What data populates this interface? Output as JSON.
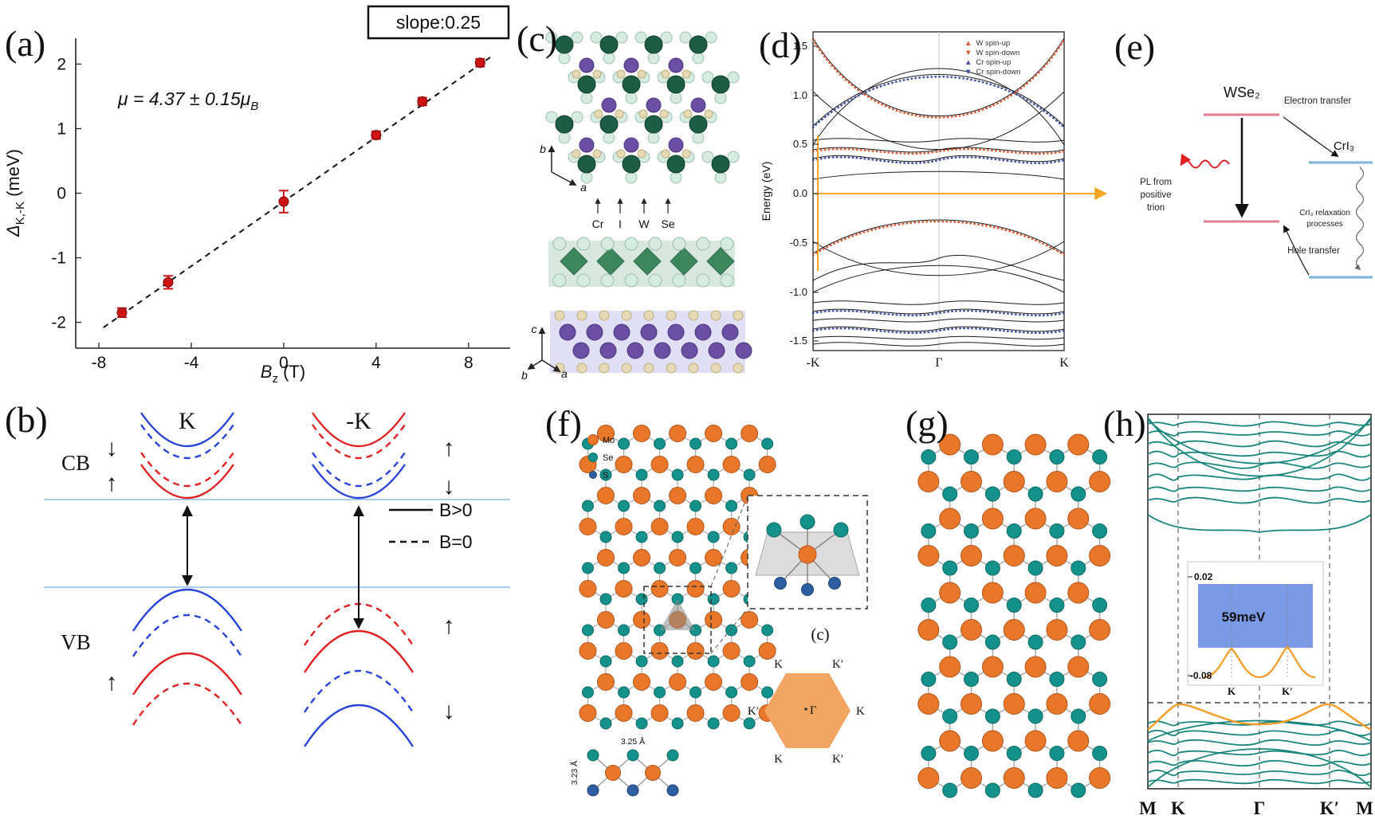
{
  "colors": {
    "marker_red": "#cc1414",
    "fit_black": "#111111",
    "red_band": "#e02020",
    "blue_band": "#2743d9",
    "light_blue_guide": "#a8cdea",
    "w_orange": "#d9542b",
    "cr_blue": "#3a4fa0",
    "band_black": "#1a1a1a",
    "fermi_orange": "#f5a623",
    "pink_level": "#e0808f",
    "blue_level": "#7ab3d9",
    "cr_green": "#1d5c45",
    "i_mint": "#d7ece1",
    "w_purple": "#6a4fa3",
    "se_beige": "#e6d9b5",
    "mo_orange": "#e8772a",
    "se_teal": "#13918a",
    "s_blue": "#2e5fa3",
    "defect_yellow": "#e8e13a",
    "band_teal": "#0e8077",
    "band_orange": "#f59a23",
    "hex_fill": "#f2a561",
    "inset_blue": "#6d8fe3",
    "splitting_text": "#1433cc"
  },
  "panels": {
    "a": {
      "label": "(a)",
      "slope_box": "slope:0.25",
      "ann_main": "μ = 4.37 ± 0.15",
      "ann_mu": "μ",
      "ann_sub": "B",
      "ylabel_main": "Δ",
      "ylabel_sub": "K,-K",
      "ylabel_rest": " (meV)",
      "xlabel_main": "B",
      "xlabel_sub": "z",
      "xlabel_rest": " (T)"
    },
    "b": {
      "label": "(b)",
      "valley_k": "K",
      "valley_mk": "-K",
      "cb": "CB",
      "vb": "VB",
      "legend_solid": "B>0",
      "legend_dashed": "B=0",
      "spin_up": "↑",
      "spin_down": "↓"
    },
    "c": {
      "label": "(c)",
      "axis_b": "b",
      "axis_a": "a",
      "axis_c": "c",
      "atom_labels": [
        "Cr",
        "I",
        "W",
        "Se"
      ]
    },
    "d": {
      "label": "(d)"
    },
    "e": {
      "label": "(e)",
      "wse2": "WSe₂",
      "cri3": "CrI₃",
      "electron_transfer": "Electron transfer",
      "hole_transfer": "Hole transfer",
      "pl_lines": [
        "PL from",
        "positive",
        "trion"
      ],
      "relax_lines": [
        "CrI₃ relaxation",
        "processes"
      ]
    },
    "f": {
      "label": "(f)",
      "legend": [
        "Mo",
        "Se",
        "S"
      ],
      "inset_label": "(c)",
      "bond_top": "3.25 Å",
      "bond_left": "3.23 Å",
      "gamma": "Γ",
      "hex_labels": [
        "K",
        "K′",
        "K",
        "K′",
        "K",
        "K′"
      ]
    },
    "g": {
      "label": "(g)"
    },
    "h": {
      "label": "(h)"
    }
  },
  "chart_data": [
    {
      "panel": "a",
      "type": "scatter",
      "xlabel": "B_z (T)",
      "ylabel": "Δ_K,-K (meV)",
      "x": [
        -7,
        -5,
        0,
        4,
        6,
        8.5
      ],
      "y": [
        -1.85,
        -1.38,
        -0.13,
        0.9,
        1.42,
        2.02
      ],
      "yerr": [
        0.07,
        0.1,
        0.17,
        0.06,
        0.06,
        0.06
      ],
      "xticks": [
        -8,
        -4,
        0,
        4,
        8
      ],
      "yticks": [
        -2,
        -1,
        0,
        1,
        2
      ],
      "xlim": [
        -9,
        9.8
      ],
      "ylim": [
        -2.4,
        2.4
      ],
      "fit": {
        "slope": 0.25,
        "intercept": -0.13,
        "style": "dashed",
        "label": "slope:0.25"
      },
      "annotation": "μ = 4.37 ± 0.15 μ_B",
      "grid": false,
      "legend_position": "none"
    },
    {
      "panel": "d",
      "type": "line",
      "ylabel": "Energy (eV)",
      "ylim": [
        -1.5,
        1.5
      ],
      "yticks": [
        "1.5",
        "1.0",
        "0.5",
        "0.0",
        "-0.5",
        "-1.0",
        "-1.5"
      ],
      "xticks": [
        "-K",
        "Γ",
        "K"
      ],
      "legend": [
        {
          "label": "W spin-up",
          "marker": "▲",
          "color": "#d9542b"
        },
        {
          "label": "W spin-down",
          "marker": "▼",
          "color": "#d9542b"
        },
        {
          "label": "Cr spin-up",
          "marker": "▲",
          "color": "#3a4fa0"
        },
        {
          "label": "Cr spin-down",
          "marker": "▼",
          "color": "#3a4fa0"
        }
      ],
      "fermi_level": 0.0,
      "legend_position": "top-right",
      "grid": false
    },
    {
      "panel": "h",
      "type": "line",
      "xticks": [
        "M",
        "K",
        "Γ",
        "K′",
        "M"
      ],
      "inset": {
        "splitting_label": "59meV",
        "y_top": "0.02",
        "y_bottom": "-0.08",
        "xticks": [
          "K",
          "K′"
        ]
      },
      "grid": false
    }
  ]
}
